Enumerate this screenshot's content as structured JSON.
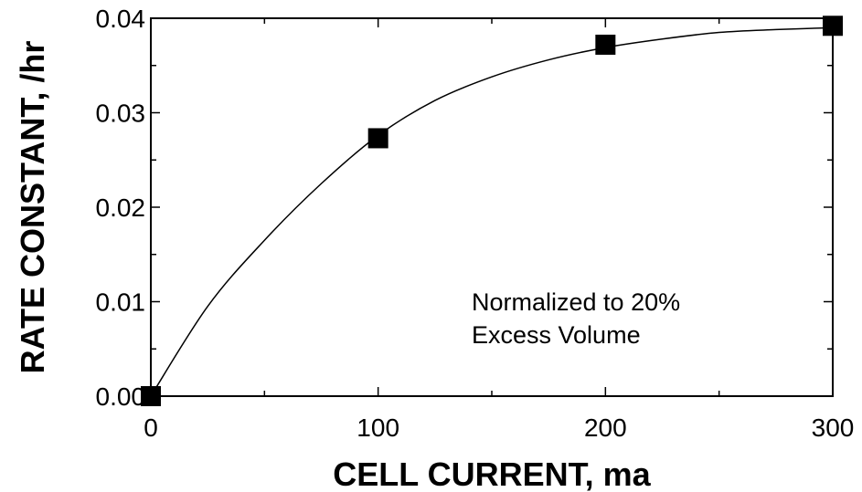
{
  "chart_data": {
    "type": "line",
    "xlabel": "CELL CURRENT, ma",
    "ylabel": "RATE CONSTANT, /hr",
    "xlim": [
      0,
      300
    ],
    "ylim": [
      0,
      0.04
    ],
    "x_ticks": [
      0,
      100,
      200,
      300
    ],
    "x_tick_labels": [
      "0",
      "100",
      "200",
      "300"
    ],
    "y_ticks": [
      0,
      0.01,
      0.02,
      0.03,
      0.04
    ],
    "y_tick_labels": [
      "0.00",
      "0.01",
      "0.02",
      "0.03",
      "0.04"
    ],
    "grid": false,
    "series": [
      {
        "style": "markers",
        "marker": "square",
        "x": [
          0,
          100,
          200,
          300
        ],
        "y": [
          0.0,
          0.0273,
          0.0372,
          0.0392
        ]
      },
      {
        "style": "line",
        "x": [
          0,
          25,
          50,
          75,
          100,
          125,
          150,
          175,
          200,
          225,
          250,
          275,
          300
        ],
        "y": [
          0.0,
          0.0095,
          0.0165,
          0.0225,
          0.0276,
          0.0313,
          0.0338,
          0.0356,
          0.0369,
          0.0378,
          0.0385,
          0.0388,
          0.039
        ]
      }
    ],
    "annotations": [
      "Normalized to 20%",
      "Excess Volume"
    ],
    "colors": {
      "line": "#000000",
      "marker": "#000000",
      "axes": "#000000"
    }
  }
}
